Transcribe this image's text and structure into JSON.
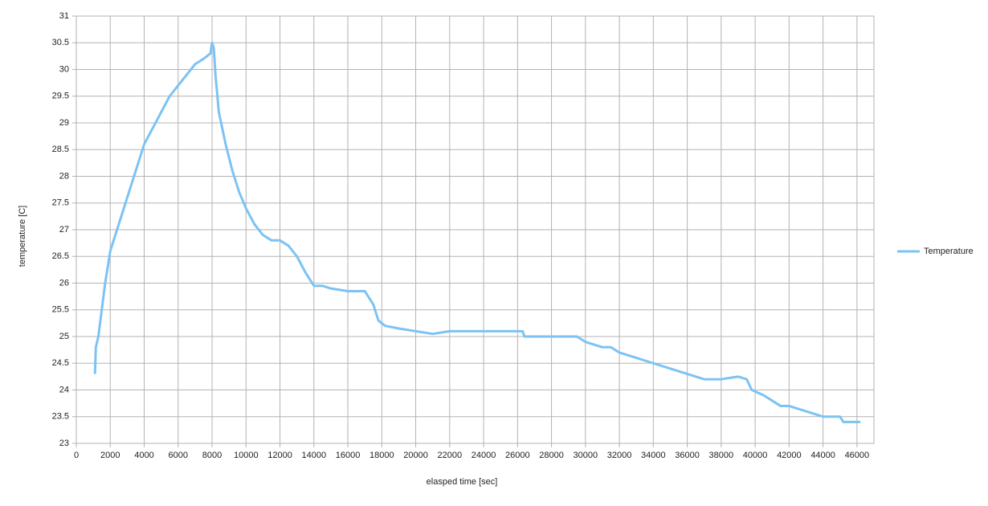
{
  "chart_data": {
    "type": "line",
    "xlabel": "elasped time [sec]",
    "ylabel": "temperature [C]",
    "xlim": [
      0,
      47000
    ],
    "ylim": [
      23,
      31
    ],
    "xticks": [
      0,
      2000,
      4000,
      6000,
      8000,
      10000,
      12000,
      14000,
      16000,
      18000,
      20000,
      22000,
      24000,
      26000,
      28000,
      30000,
      32000,
      34000,
      36000,
      38000,
      40000,
      42000,
      44000,
      46000
    ],
    "yticks": [
      23,
      23.5,
      24,
      24.5,
      25,
      25.5,
      26,
      26.5,
      27,
      27.5,
      28,
      28.5,
      29,
      29.5,
      30,
      30.5,
      31
    ],
    "grid": true,
    "legend": "right",
    "series": [
      {
        "name": "Temperature",
        "color": "#7cc3f3",
        "x": [
          1100,
          1150,
          1300,
          1500,
          1700,
          2000,
          2500,
          3000,
          3500,
          4000,
          4500,
          5000,
          5500,
          6000,
          6500,
          7000,
          7500,
          7900,
          8000,
          8100,
          8200,
          8400,
          8800,
          9200,
          9600,
          10000,
          10500,
          11000,
          11500,
          12000,
          12500,
          13000,
          13500,
          14000,
          14500,
          15000,
          16000,
          17000,
          17500,
          17800,
          18200,
          19000,
          20000,
          21000,
          22000,
          26300,
          26400,
          29500,
          30000,
          31000,
          31500,
          32000,
          33000,
          34000,
          35000,
          36000,
          37000,
          38000,
          39000,
          39500,
          39800,
          40500,
          41000,
          41500,
          42000,
          43000,
          44000,
          45000,
          45200,
          46200
        ],
        "values": [
          24.3,
          24.8,
          25.0,
          25.5,
          26.0,
          26.6,
          27.1,
          27.6,
          28.1,
          28.6,
          28.9,
          29.2,
          29.5,
          29.7,
          29.9,
          30.1,
          30.2,
          30.3,
          30.5,
          30.4,
          29.9,
          29.2,
          28.6,
          28.1,
          27.7,
          27.4,
          27.1,
          26.9,
          26.8,
          26.8,
          26.7,
          26.5,
          26.2,
          25.95,
          25.95,
          25.9,
          25.85,
          25.85,
          25.6,
          25.3,
          25.2,
          25.15,
          25.1,
          25.05,
          25.1,
          25.1,
          25.0,
          25.0,
          24.9,
          24.8,
          24.8,
          24.7,
          24.6,
          24.5,
          24.4,
          24.3,
          24.2,
          24.2,
          24.25,
          24.2,
          24.0,
          23.9,
          23.8,
          23.7,
          23.7,
          23.6,
          23.5,
          23.5,
          23.4,
          23.4
        ]
      }
    ]
  }
}
